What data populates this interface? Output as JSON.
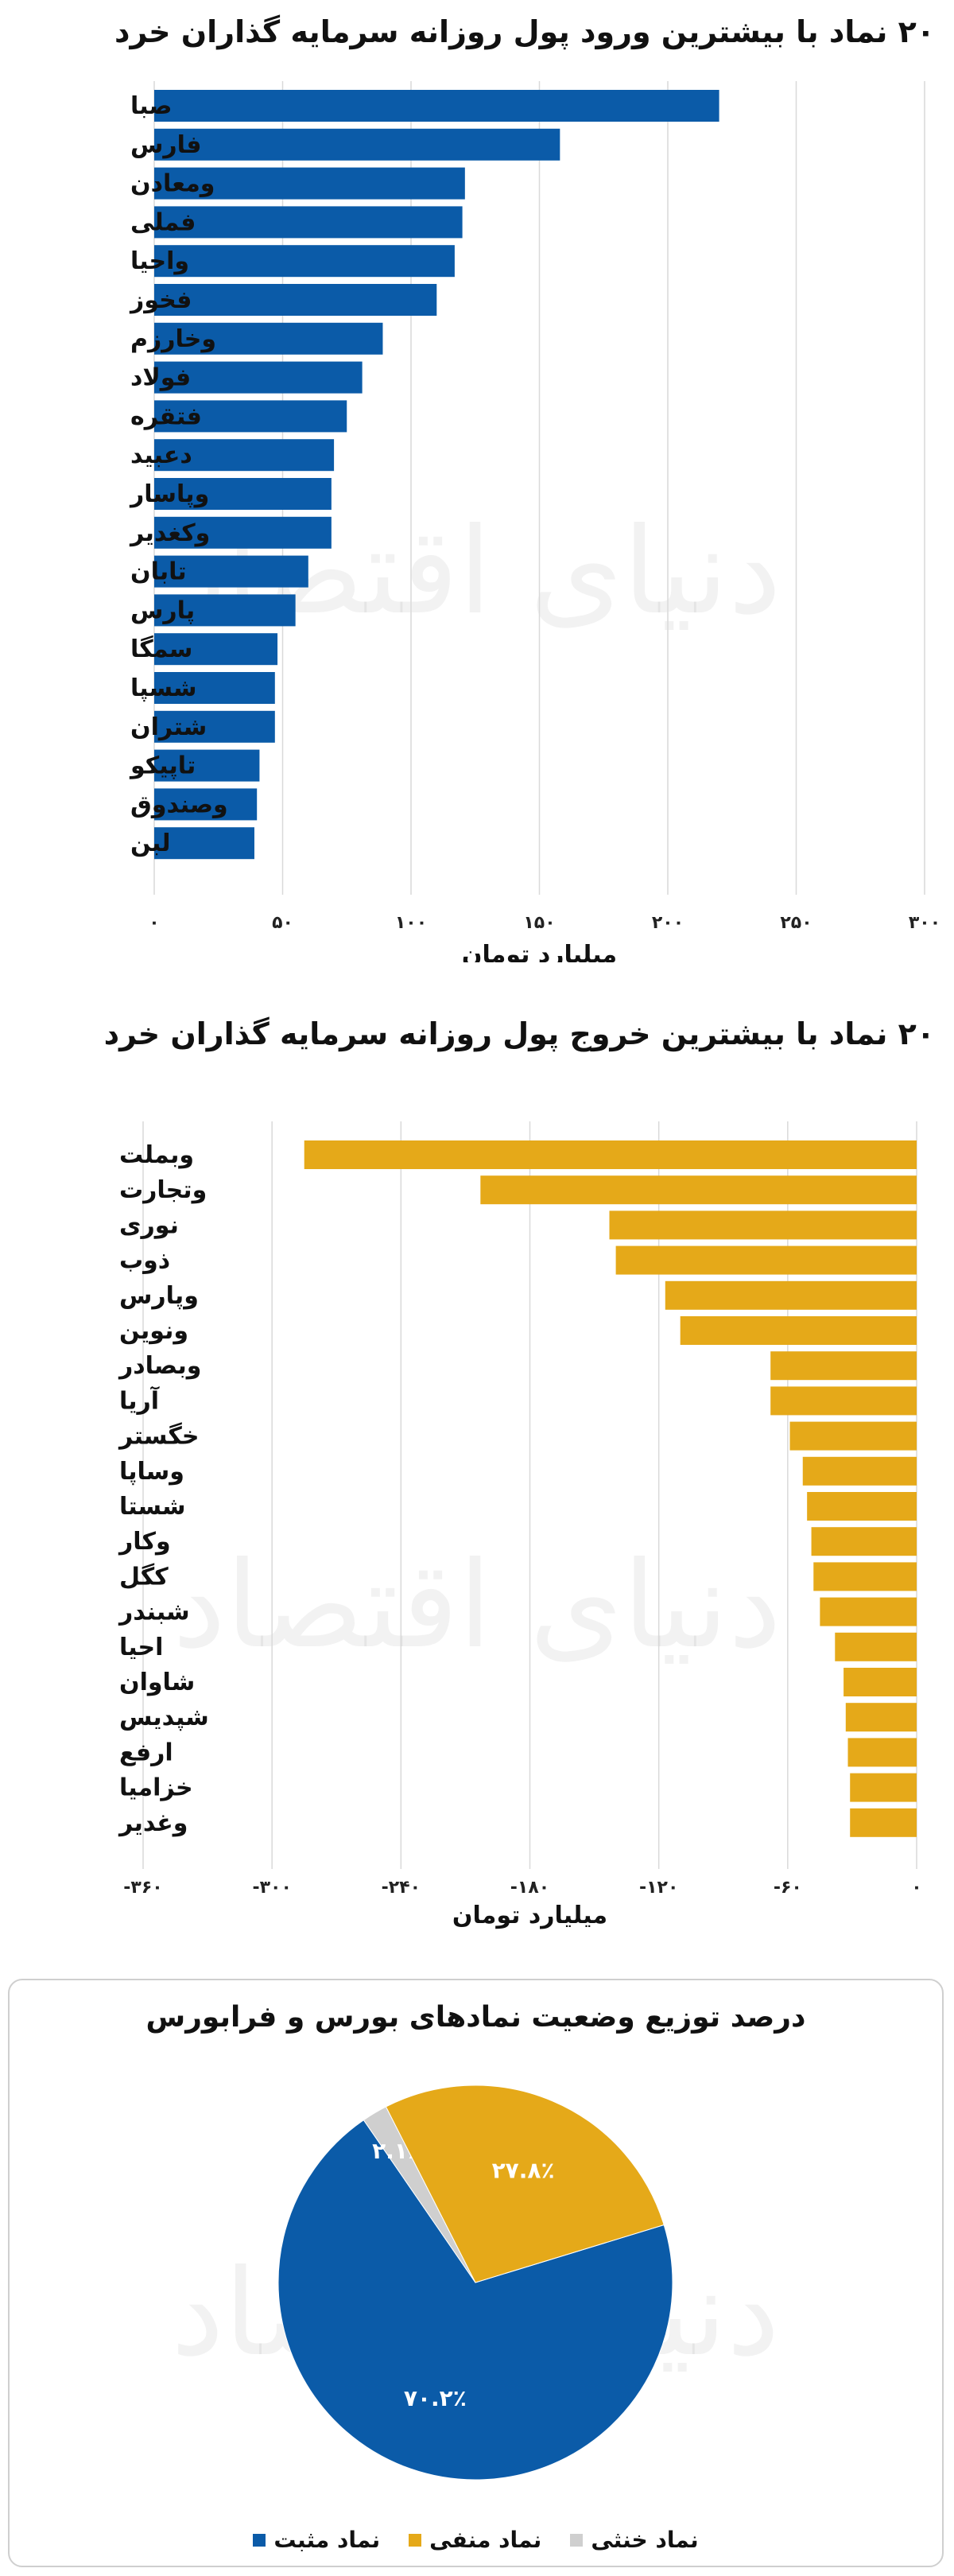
{
  "chart_data": [
    {
      "type": "bar",
      "orientation": "horizontal",
      "title": "۲۰ نماد با بیشترین ورود پول روزانه سرمایه گذاران خرد",
      "xlabel": "میلیارد تومان",
      "xlim": [
        0,
        300
      ],
      "tick_values": [
        0,
        50,
        100,
        150,
        200,
        250,
        300
      ],
      "tick_labels": [
        "۰",
        "۵۰",
        "۱۰۰",
        "۱۵۰",
        "۲۰۰",
        "۲۵۰",
        "۳۰۰"
      ],
      "grid": true,
      "color": "#0b5ba8",
      "categories": [
        "صبا",
        "فارس",
        "ومعادن",
        "فملی",
        "واحیا",
        "فخوز",
        "وخارزم",
        "فولاد",
        "فتقره",
        "دعبید",
        "وپاسار",
        "وکغدیر",
        "تابان",
        "پارس",
        "سمگا",
        "شسپا",
        "شتران",
        "تاپیکو",
        "وصندوق",
        "لبن"
      ],
      "values": [
        220,
        158,
        121,
        120,
        117,
        110,
        89,
        81,
        75,
        70,
        69,
        69,
        60,
        55,
        48,
        47,
        47,
        41,
        40,
        39
      ]
    },
    {
      "type": "bar",
      "orientation": "horizontal",
      "title": "۲۰ نماد با بیشترین خروج پول روزانه سرمایه گذاران خرد",
      "xlabel": "میلیارد تومان",
      "xlim": [
        -360,
        0
      ],
      "tick_values": [
        -360,
        -300,
        -240,
        -180,
        -120,
        -60,
        0
      ],
      "tick_labels": [
        "-۳۶۰",
        "-۳۰۰",
        "-۲۴۰",
        "-۱۸۰",
        "-۱۲۰",
        "-۶۰",
        "۰"
      ],
      "grid": true,
      "color": "#e5a919",
      "categories": [
        "وبملت",
        "وتجارت",
        "نوری",
        "ذوب",
        "وپارس",
        "ونوین",
        "وبصادر",
        "آریا",
        "خگستر",
        "وساپا",
        "شستا",
        "وکار",
        "کگل",
        "شبندر",
        "احیا",
        "شاوان",
        "شپدیس",
        "ارفع",
        "خزامیا",
        "وغدیر"
      ],
      "values": [
        -285,
        -203,
        -143,
        -140,
        -117,
        -110,
        -68,
        -68,
        -59,
        -53,
        -51,
        -49,
        -48,
        -45,
        -38,
        -34,
        -33,
        -32,
        -31,
        -31
      ]
    },
    {
      "type": "pie",
      "title": "درصد توزیع وضعیت نمادهای بورس و فرابورس",
      "legend_position": "bottom",
      "slices": [
        {
          "name": "نماد مثبت",
          "value": 70.2,
          "label": "۷۰.۲٪",
          "color": "#0b5ba8"
        },
        {
          "name": "نماد منفی",
          "value": 27.8,
          "label": "۲۷.۸٪",
          "color": "#e5a919"
        },
        {
          "name": "نماد خنثی",
          "value": 2.1,
          "label": "۲.۱٪",
          "color": "#cfcfcf"
        }
      ]
    }
  ],
  "watermark": "دنیای اقتصاد"
}
